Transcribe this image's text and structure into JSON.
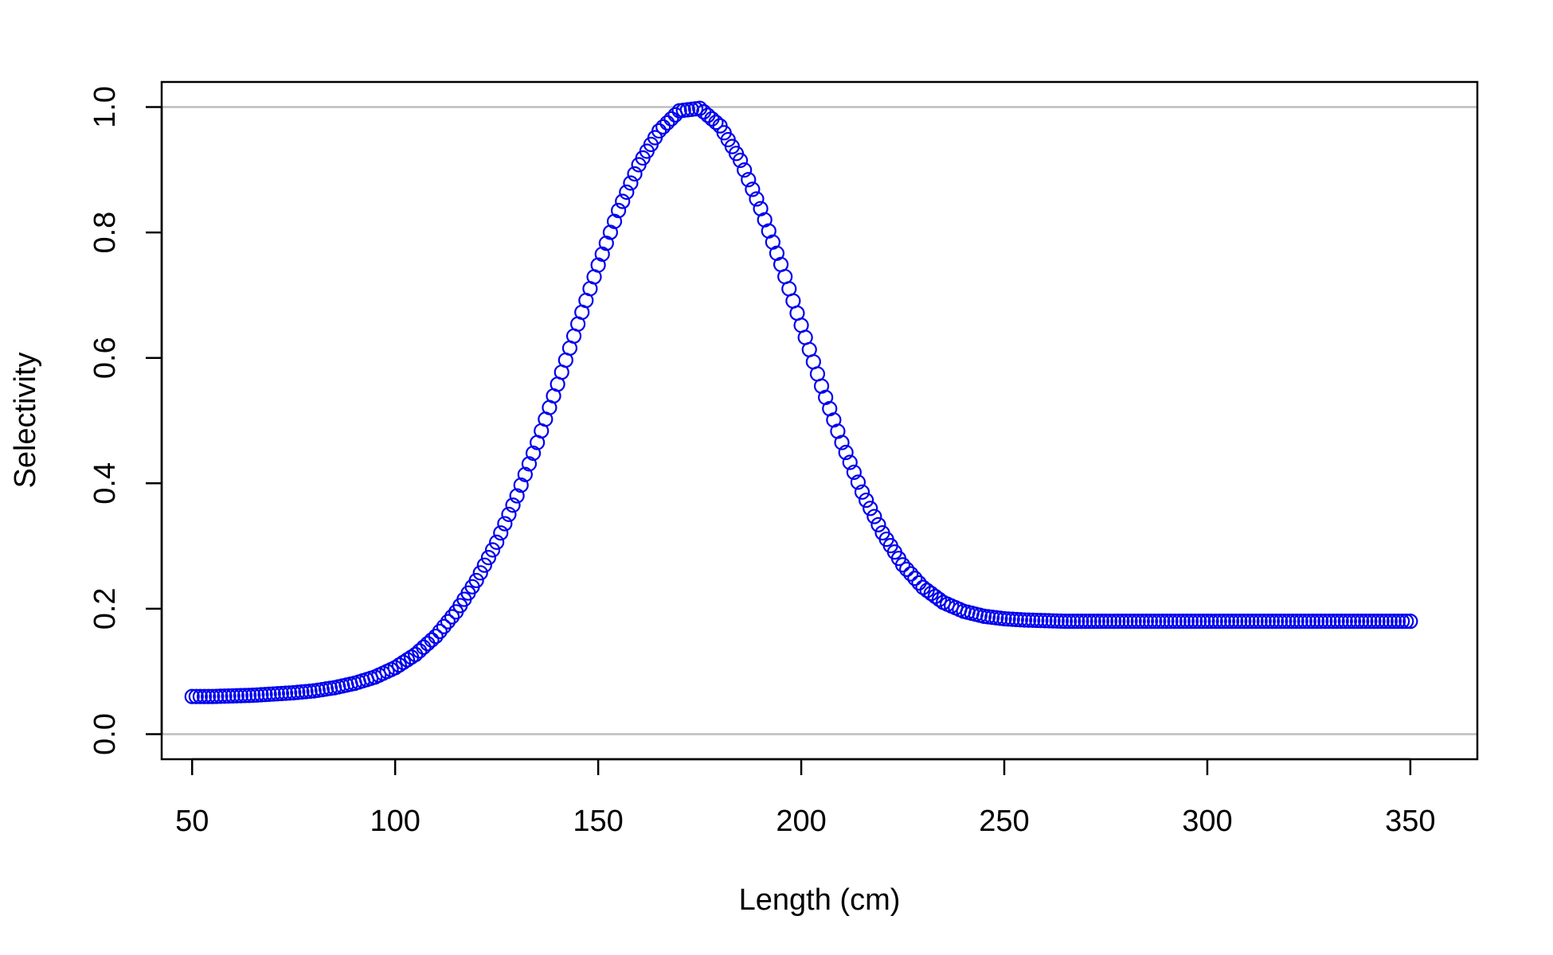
{
  "chart_data": {
    "type": "scatter",
    "title": "",
    "xlabel": "Length (cm)",
    "ylabel": "Selectivity",
    "xlim": [
      42.5,
      366.5
    ],
    "ylim": [
      -0.04,
      1.04
    ],
    "x_ticks": [
      50,
      100,
      150,
      200,
      250,
      300,
      350
    ],
    "x_tick_labels": [
      "50",
      "100",
      "150",
      "200",
      "250",
      "300",
      "350"
    ],
    "y_ticks": [
      0.0,
      0.2,
      0.4,
      0.6,
      0.8,
      1.0
    ],
    "y_tick_labels": [
      "0.0",
      "0.2",
      "0.4",
      "0.6",
      "0.8",
      "1.0"
    ],
    "reference_lines_y": [
      0,
      1
    ],
    "grid": false,
    "legend": "none",
    "marker": "open-circle",
    "colors": {
      "series": "#0000ee",
      "reference": "#bebebe",
      "axis": "#000000"
    },
    "series": [
      {
        "x": [
          50,
          55,
          60,
          65,
          70,
          75,
          80,
          85,
          90,
          95,
          100,
          105,
          110,
          115,
          120,
          125,
          130,
          135,
          140,
          145,
          150,
          155,
          160,
          165,
          170,
          175,
          180,
          185,
          190,
          195,
          200,
          205,
          210,
          215,
          220,
          225,
          230,
          235,
          240,
          245,
          250,
          255,
          260,
          265,
          270,
          275,
          280,
          285,
          290,
          295,
          300,
          305,
          310,
          315,
          320,
          325,
          330,
          335,
          340,
          345,
          350
        ],
        "y": [
          0.06,
          0.06,
          0.061,
          0.062,
          0.064,
          0.066,
          0.069,
          0.074,
          0.081,
          0.091,
          0.106,
          0.127,
          0.156,
          0.195,
          0.245,
          0.306,
          0.38,
          0.465,
          0.558,
          0.654,
          0.748,
          0.835,
          0.908,
          0.962,
          0.994,
          0.998,
          0.97,
          0.915,
          0.838,
          0.749,
          0.652,
          0.555,
          0.465,
          0.386,
          0.321,
          0.27,
          0.234,
          0.21,
          0.196,
          0.188,
          0.184,
          0.182,
          0.181,
          0.18,
          0.18,
          0.18,
          0.18,
          0.18,
          0.18,
          0.18,
          0.18,
          0.18,
          0.18,
          0.18,
          0.18,
          0.18,
          0.18,
          0.18,
          0.18,
          0.18,
          0.18
        ]
      }
    ]
  }
}
